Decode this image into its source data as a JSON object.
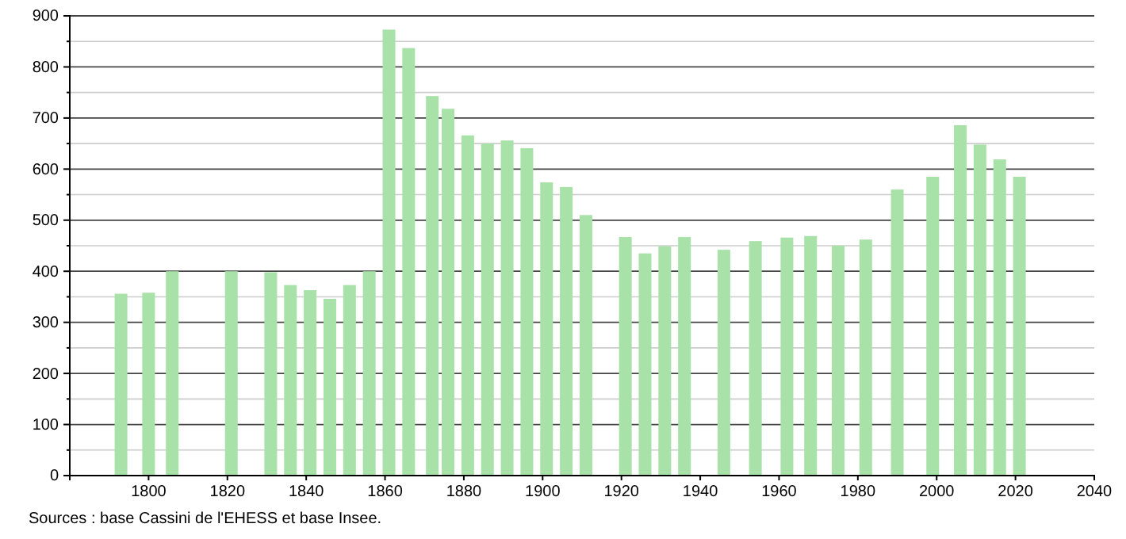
{
  "chart_data": {
    "type": "bar",
    "x": [
      1793,
      1800,
      1806,
      1821,
      1831,
      1836,
      1841,
      1846,
      1851,
      1856,
      1861,
      1866,
      1872,
      1876,
      1881,
      1886,
      1891,
      1896,
      1901,
      1906,
      1911,
      1921,
      1926,
      1931,
      1936,
      1946,
      1954,
      1962,
      1968,
      1975,
      1982,
      1990,
      1999,
      2006,
      2011,
      2016,
      2021
    ],
    "values": [
      356,
      358,
      400,
      400,
      398,
      373,
      363,
      346,
      373,
      400,
      873,
      837,
      743,
      718,
      666,
      650,
      656,
      641,
      574,
      565,
      510,
      467,
      435,
      449,
      467,
      442,
      459,
      466,
      469,
      450,
      462,
      560,
      585,
      686,
      648,
      619,
      585
    ],
    "color": "#a8e2a8",
    "xlim": [
      1780,
      2040
    ],
    "xticks": [
      1800,
      1820,
      1840,
      1860,
      1880,
      1900,
      1920,
      1940,
      1960,
      1980,
      2000,
      2020,
      2040
    ],
    "ylim": [
      0,
      900
    ],
    "yticks": [
      0,
      {
        "value": 50,
        "label": null
      },
      100,
      {
        "value": 150,
        "label": null
      },
      200,
      {
        "value": 250,
        "label": null
      },
      300,
      {
        "value": 350,
        "label": null
      },
      400,
      {
        "value": 450,
        "label": null
      },
      500,
      {
        "value": 550,
        "label": null
      },
      600,
      {
        "value": 650,
        "label": null
      },
      700,
      {
        "value": 750,
        "label": null
      },
      800,
      {
        "value": 850,
        "label": null
      },
      900
    ],
    "grid": "y",
    "annotations": [
      "Sources : base Cassini de l'EHESS et base Insee."
    ]
  }
}
